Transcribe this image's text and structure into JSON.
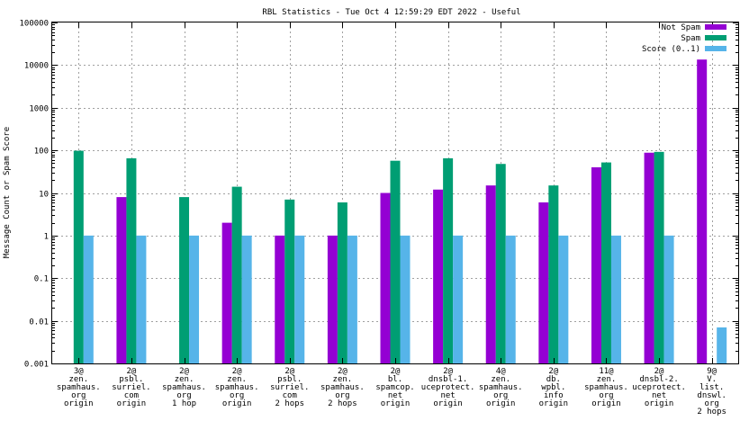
{
  "chart_data": {
    "type": "bar",
    "title": "RBL Statistics - Tue Oct  4 12:59:29 EDT 2022 - Useful",
    "ylabel": "Message Count or Spam Score",
    "xlabel": "",
    "yscale": "log",
    "ylim": [
      0.001,
      100000
    ],
    "ytick_labels": [
      "0.001",
      "0.01",
      "0.1",
      "1",
      "10",
      "100",
      "1000",
      "10000",
      "100000"
    ],
    "ytick_values": [
      0.001,
      0.01,
      0.1,
      1,
      10,
      100,
      1000,
      10000,
      100000
    ],
    "legend_position": "top-right",
    "categories": [
      [
        "3@",
        "zen.",
        "spamhaus.",
        "org",
        "origin"
      ],
      [
        "2@",
        "psbl.",
        "surriel.",
        "com",
        "origin"
      ],
      [
        "2@",
        "zen.",
        "spamhaus.",
        "org",
        "1 hop"
      ],
      [
        "2@",
        "zen.",
        "spamhaus.",
        "org",
        "origin"
      ],
      [
        "2@",
        "psbl.",
        "surriel.",
        "com",
        "2 hops"
      ],
      [
        "2@",
        "zen.",
        "spamhaus.",
        "org",
        "2 hops"
      ],
      [
        "2@",
        "bl.",
        "spamcop.",
        "net",
        "origin"
      ],
      [
        "2@",
        "dnsbl-1.",
        "uceprotect.",
        "net",
        "origin"
      ],
      [
        "4@",
        "zen.",
        "spamhaus.",
        "org",
        "origin"
      ],
      [
        "2@",
        "db.",
        "wpbl.",
        "info",
        "origin"
      ],
      [
        "11@",
        "zen.",
        "spamhaus.",
        "org",
        "origin"
      ],
      [
        "2@",
        "dnsbl-2.",
        "uceprotect.",
        "net",
        "origin"
      ],
      [
        "9@",
        "V.",
        "list.",
        "dnswl.",
        "org",
        "2 hops"
      ]
    ],
    "series": [
      {
        "name": "Not Spam",
        "color": "#9400d3",
        "values": [
          null,
          8,
          null,
          2,
          1,
          1,
          10,
          12,
          15,
          6,
          40,
          88,
          13500
        ]
      },
      {
        "name": "Spam",
        "color": "#009e73",
        "values": [
          98,
          65,
          8,
          14,
          7,
          6,
          57,
          65,
          48,
          15,
          52,
          92,
          null
        ]
      },
      {
        "name": "Score (0..1)",
        "color": "#56b4e9",
        "values": [
          1,
          1,
          1,
          1,
          1,
          1,
          1,
          1,
          1,
          1,
          1,
          1,
          0.007
        ]
      }
    ]
  }
}
